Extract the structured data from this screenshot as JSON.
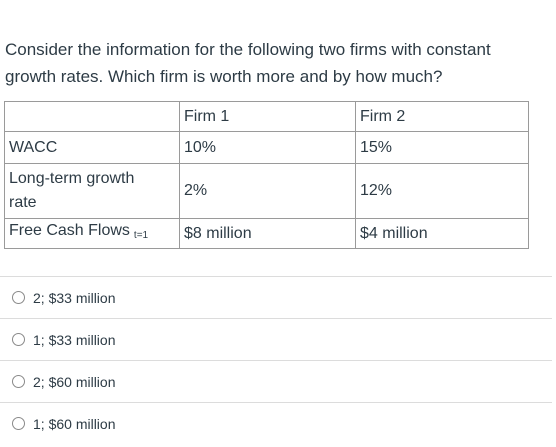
{
  "question": {
    "text": "Consider the information for the following two firms with constant growth rates.  Which firm is worth more and by how much?"
  },
  "table": {
    "headers": [
      "",
      "Firm 1",
      "Firm 2"
    ],
    "rows": [
      {
        "label": "WACC",
        "firm1": "10%",
        "firm2": "15%"
      },
      {
        "label": "Long-term growth rate",
        "firm1": "2%",
        "firm2": "12%"
      },
      {
        "label": "Free Cash Flows",
        "label_sub": "t=1",
        "firm1": "$8 million",
        "firm2": "$4 million"
      }
    ]
  },
  "options": [
    {
      "label": "2; $33 million"
    },
    {
      "label": "1; $33 million"
    },
    {
      "label": "2; $60 million"
    },
    {
      "label": "1; $60 million"
    }
  ]
}
